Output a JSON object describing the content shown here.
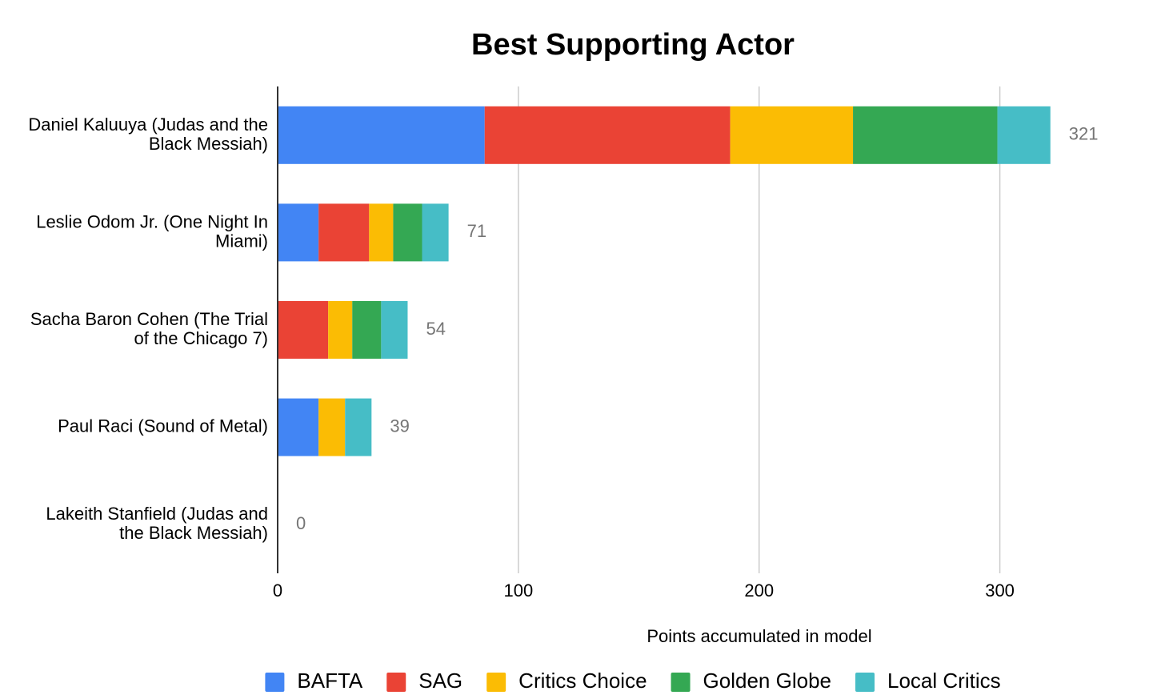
{
  "chart_data": {
    "type": "stacked-bar-horizontal",
    "title": "Best Supporting Actor",
    "x_label": "Points accumulated in model",
    "categories": [
      "Daniel Kaluuya (Judas and the Black Messiah)",
      "Leslie Odom Jr. (One Night In Miami)",
      "Sacha Baron Cohen (The Trial of the Chicago 7)",
      "Paul Raci (Sound of Metal)",
      "Lakeith Stanfield (Judas and the Black Messiah)"
    ],
    "series": [
      {
        "name": "BAFTA",
        "color": "#4285f4",
        "values": [
          86,
          17,
          0,
          17,
          0
        ]
      },
      {
        "name": "SAG",
        "color": "#ea4335",
        "values": [
          102,
          21,
          21,
          0,
          0
        ]
      },
      {
        "name": "Critics Choice",
        "color": "#fbbc04",
        "values": [
          51,
          10,
          10,
          11,
          0
        ]
      },
      {
        "name": "Golden Globe",
        "color": "#34a853",
        "values": [
          60,
          12,
          12,
          0,
          0
        ]
      },
      {
        "name": "Local Critics",
        "color": "#46bdc6",
        "values": [
          22,
          11,
          11,
          11,
          0
        ]
      }
    ],
    "totals": [
      321,
      71,
      54,
      39,
      0
    ],
    "xlim": [
      0,
      350
    ],
    "xticks": [
      0,
      100,
      200,
      300
    ],
    "grid": true,
    "legend": "bottom"
  }
}
